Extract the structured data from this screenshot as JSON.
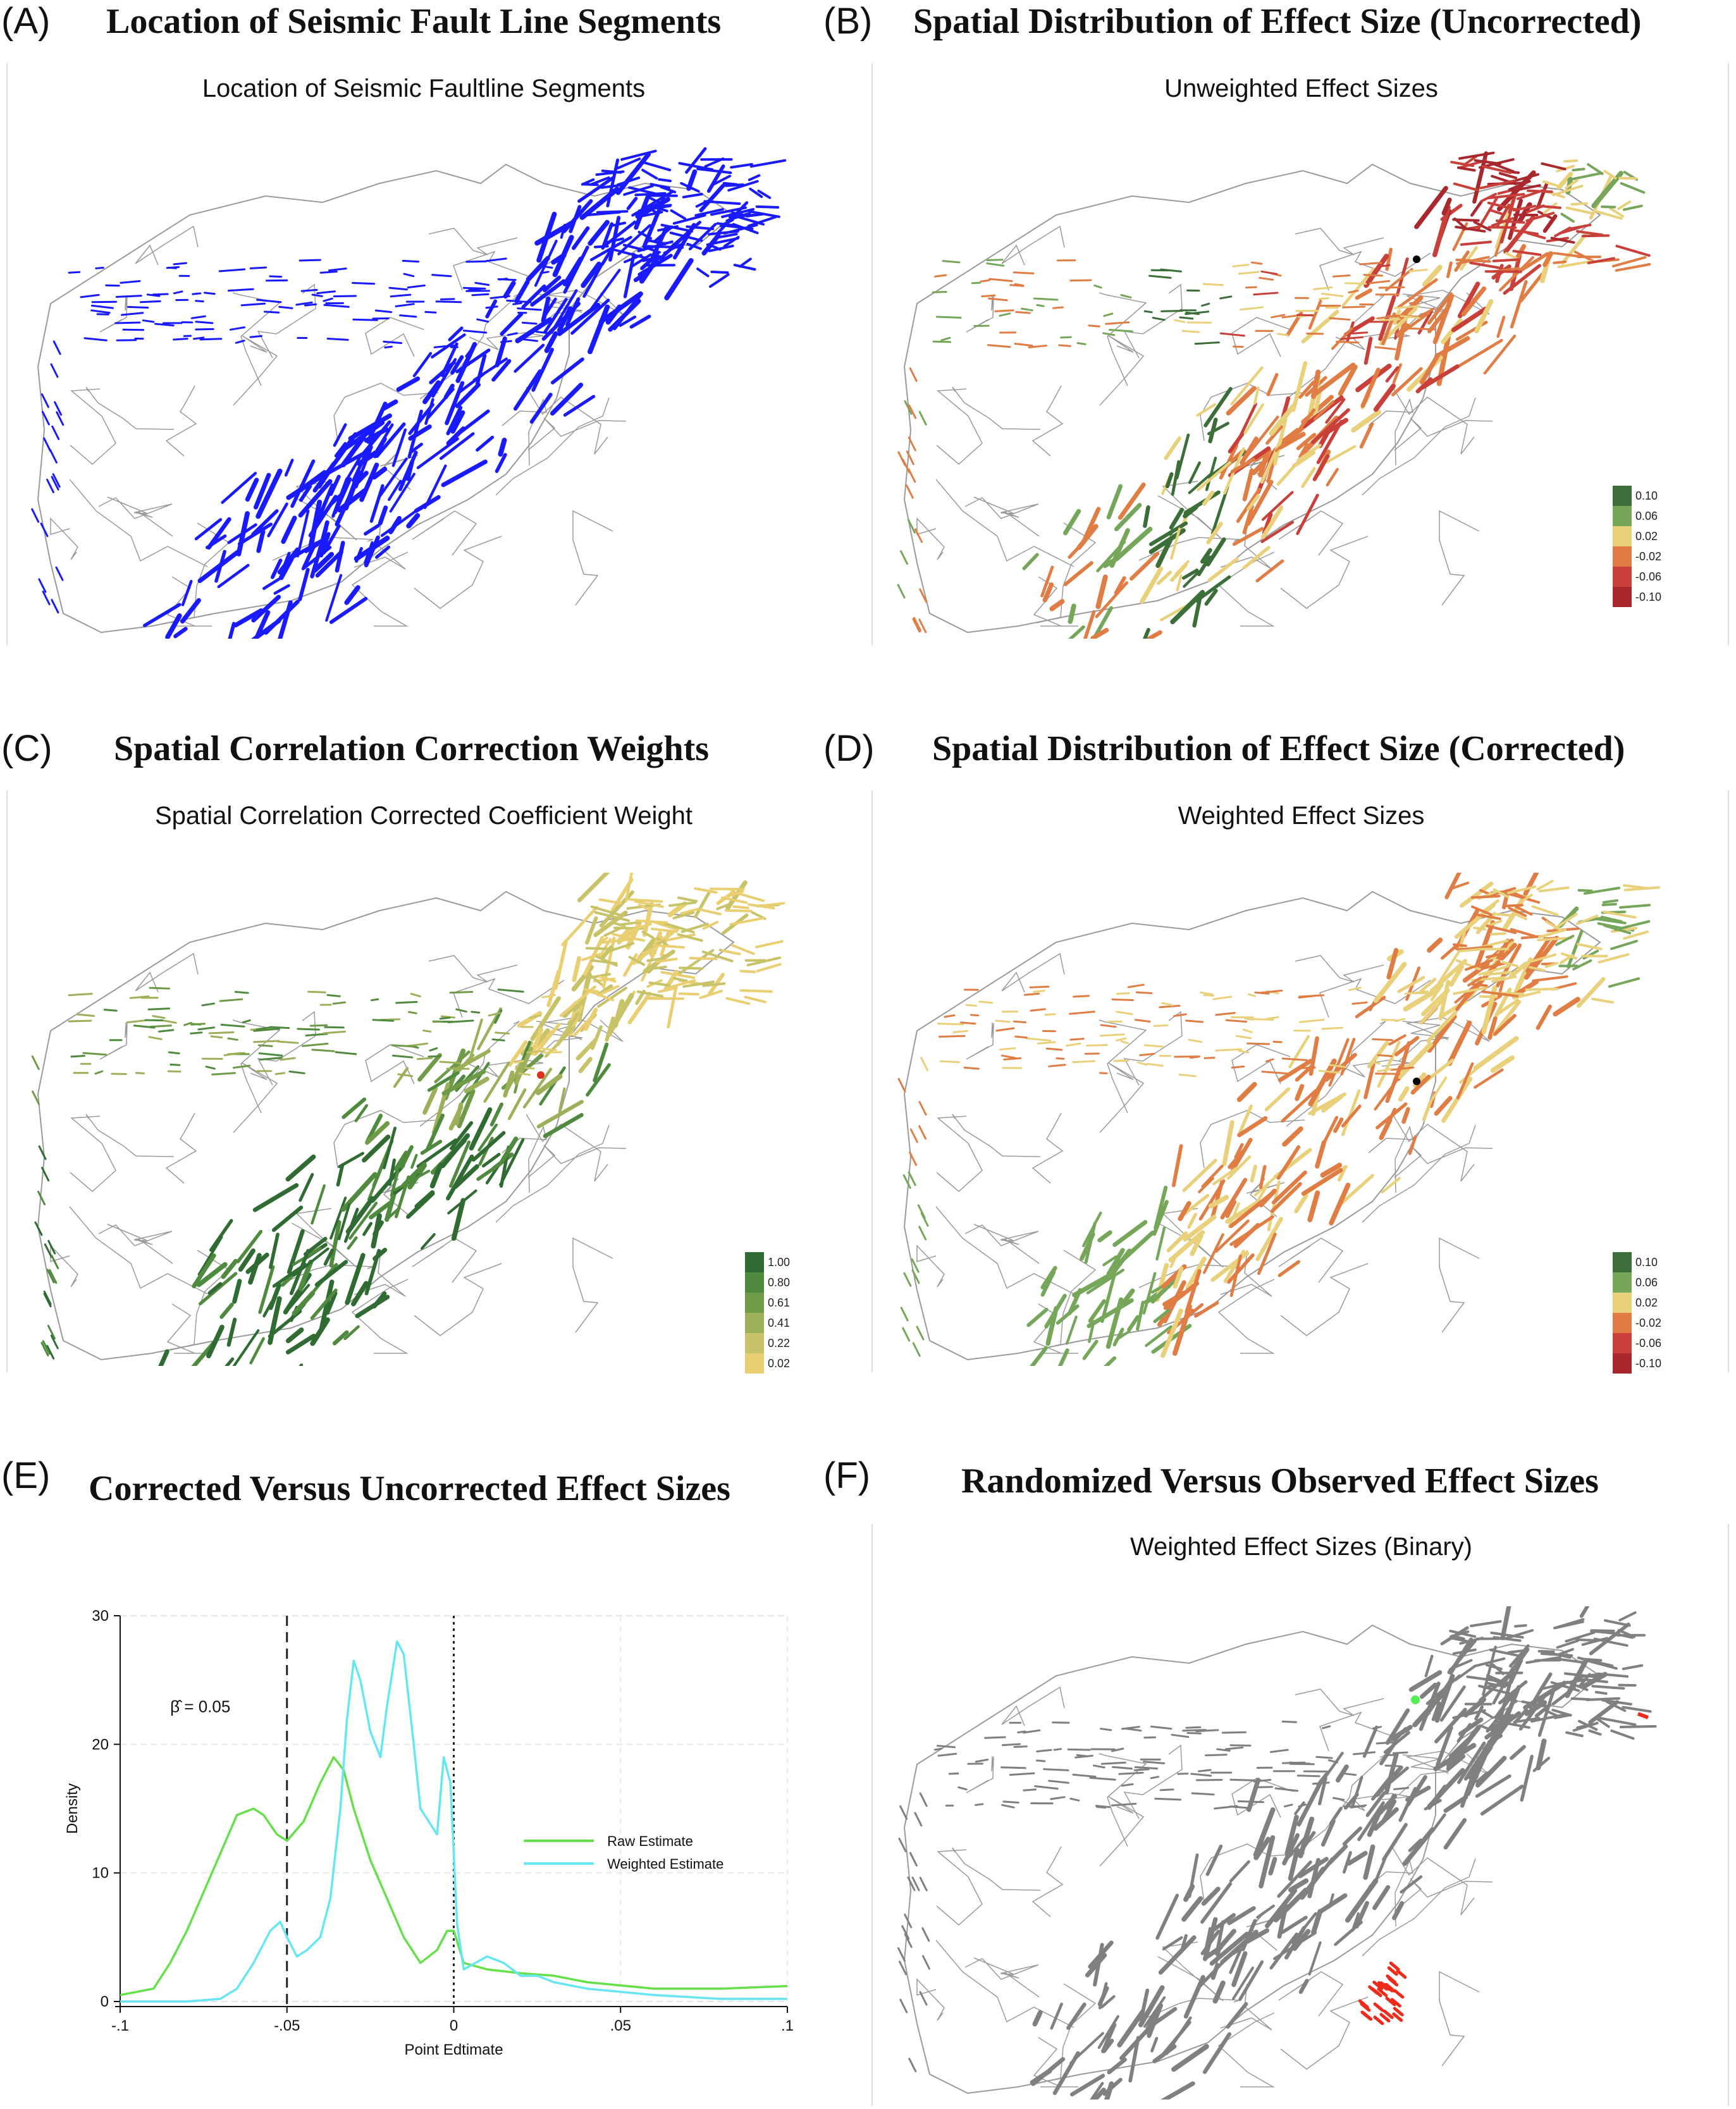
{
  "panels": {
    "A": {
      "letter": "(A)",
      "title": "Location of Seismic Fault Line Segments",
      "subtitle": "Location of Seismic Faultline Segments",
      "marker_color": "#1a1aff"
    },
    "B": {
      "letter": "(B)",
      "title": "Spatial Distribution of Effect Size (Uncorrected)",
      "subtitle": "Unweighted Effect Sizes",
      "legend": [
        "0.10",
        "0.06",
        "0.02",
        "-0.02",
        "-0.06",
        "-0.10"
      ]
    },
    "C": {
      "letter": "(C)",
      "title": "Spatial Correlation Correction Weights",
      "subtitle": "Spatial Correlation Corrected Coefficient Weight",
      "legend": [
        "1.00",
        "0.80",
        "0.61",
        "0.41",
        "0.22",
        "0.02"
      ]
    },
    "D": {
      "letter": "(D)",
      "title": "Spatial Distribution of Effect Size (Corrected)",
      "subtitle": "Weighted Effect Sizes",
      "legend": [
        "0.10",
        "0.06",
        "0.02",
        "-0.02",
        "-0.06",
        "-0.10"
      ]
    },
    "E": {
      "letter": "(E)",
      "title": "Corrected Versus Uncorrected Effect Sizes"
    },
    "F": {
      "letter": "(F)",
      "title": "Randomized Versus Observed Effect Sizes",
      "subtitle": "Weighted Effect Sizes (Binary)"
    }
  },
  "colors": {
    "effect_scale": [
      "#3b6e38",
      "#76a65a",
      "#e9d07a",
      "#df7d45",
      "#c9403a",
      "#a8282e"
    ],
    "weight_scale": [
      "#2f6b33",
      "#4f8a3f",
      "#6f9b48",
      "#9cb05a",
      "#c8c368",
      "#e9cf72"
    ],
    "raw_line": "#66e04a",
    "weighted_line": "#66e6f0",
    "boundary": "#9a9a9a",
    "binary_gray": "#808080",
    "binary_red": "#ee2a1a",
    "binary_green": "#55ee55"
  },
  "chart_data": {
    "type": "line",
    "title": "Corrected Versus Uncorrected Effect Sizes",
    "xlabel": "Point Edtimate",
    "ylabel": "Density",
    "xlim": [
      -0.1,
      0.1
    ],
    "ylim": [
      0,
      30
    ],
    "xticks": [
      -0.1,
      -0.05,
      0,
      0.05,
      0.1
    ],
    "xtick_labels": [
      "-.1",
      "-.05",
      "0",
      ".05",
      ".1"
    ],
    "yticks": [
      0,
      10,
      20,
      30
    ],
    "ytick_labels": [
      "0",
      "10",
      "20",
      "30"
    ],
    "annotation": "β̂ = 0.05",
    "vlines": [
      {
        "x": -0.05,
        "style": "dashed"
      },
      {
        "x": 0,
        "style": "dotted"
      }
    ],
    "legend_position": "right",
    "series": [
      {
        "name": "Raw Estimate",
        "x": [
          -0.1,
          -0.09,
          -0.085,
          -0.08,
          -0.075,
          -0.07,
          -0.065,
          -0.06,
          -0.057,
          -0.053,
          -0.05,
          -0.045,
          -0.04,
          -0.036,
          -0.033,
          -0.03,
          -0.025,
          -0.02,
          -0.015,
          -0.01,
          -0.005,
          -0.002,
          0.0,
          0.003,
          0.01,
          0.02,
          0.03,
          0.04,
          0.06,
          0.08,
          0.1
        ],
        "values": [
          0.5,
          1.0,
          3.0,
          5.5,
          8.5,
          11.5,
          14.5,
          15.0,
          14.5,
          13.0,
          12.5,
          14.0,
          17.0,
          19.0,
          18.0,
          15.0,
          11.0,
          8.0,
          5.0,
          3.0,
          4.0,
          5.5,
          5.5,
          3.0,
          2.5,
          2.2,
          2.0,
          1.5,
          1.0,
          1.0,
          1.2
        ]
      },
      {
        "name": "Weighted Estimate",
        "x": [
          -0.1,
          -0.08,
          -0.07,
          -0.065,
          -0.06,
          -0.055,
          -0.052,
          -0.05,
          -0.047,
          -0.044,
          -0.04,
          -0.037,
          -0.034,
          -0.032,
          -0.03,
          -0.028,
          -0.025,
          -0.022,
          -0.02,
          -0.017,
          -0.015,
          -0.012,
          -0.01,
          -0.005,
          -0.003,
          -0.001,
          0.001,
          0.003,
          0.01,
          0.015,
          0.02,
          0.025,
          0.03,
          0.04,
          0.06,
          0.08,
          0.1
        ],
        "values": [
          0.0,
          0.0,
          0.2,
          1.0,
          3.0,
          5.5,
          6.2,
          5.0,
          3.5,
          4.0,
          5.0,
          8.0,
          15.0,
          22.0,
          26.5,
          25.0,
          21.0,
          19.0,
          23.0,
          28.0,
          27.0,
          20.0,
          15.0,
          13.0,
          19.0,
          17.0,
          6.0,
          2.5,
          3.5,
          3.0,
          2.0,
          2.0,
          1.5,
          1.0,
          0.5,
          0.2,
          0.2
        ]
      }
    ]
  }
}
